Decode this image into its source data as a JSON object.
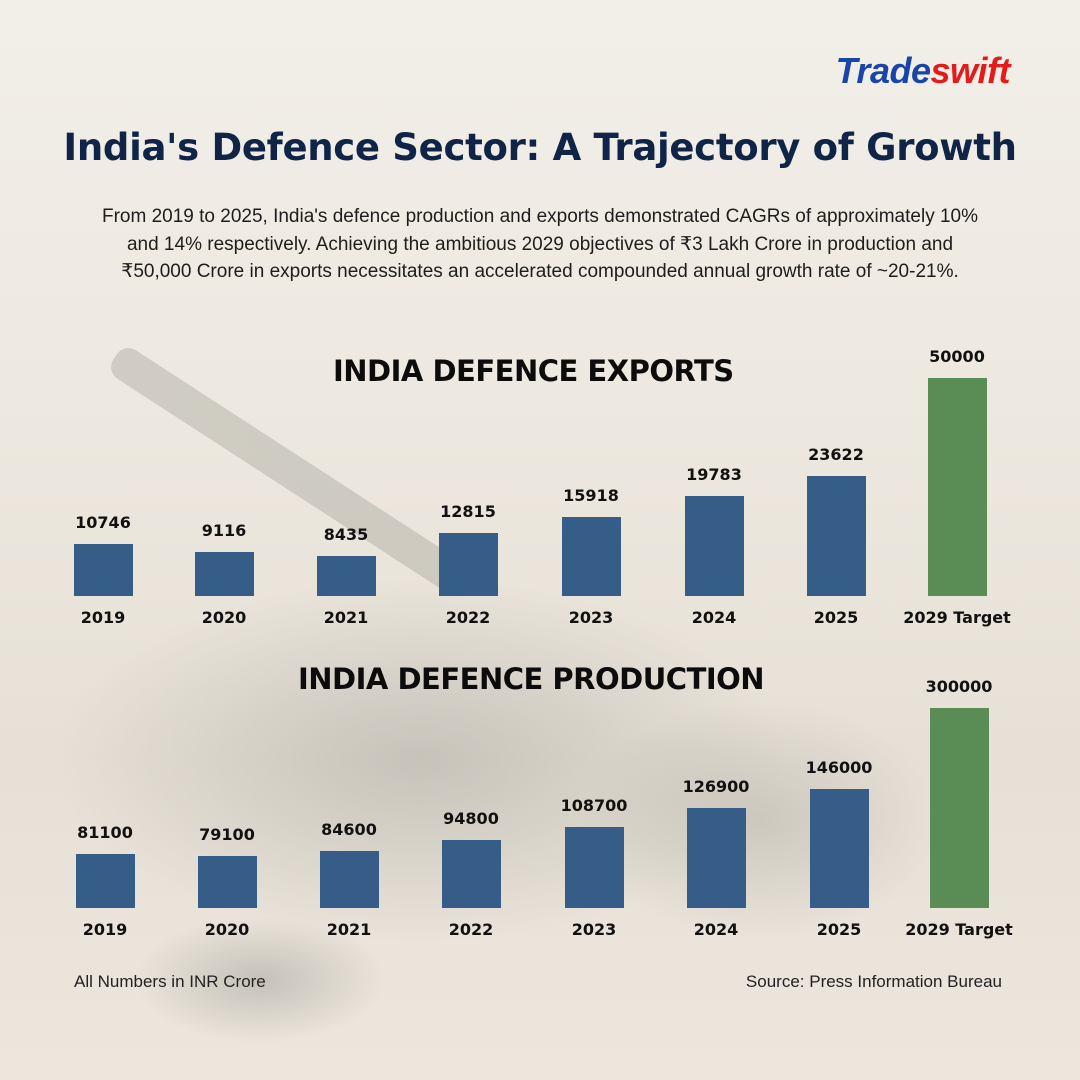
{
  "brand": {
    "part1": "Trade",
    "part2": "swift"
  },
  "header": {
    "title": "India's Defence Sector: A Trajectory of Growth",
    "subtitle": "From 2019 to 2025, India's defence production and exports demonstrated CAGRs of approximately 10% and 14% respectively. Achieving the ambitious 2029 objectives of ₹3 Lakh Crore in production and ₹50,000 Crore in exports necessitates an accelerated compounded annual growth rate of ~20-21%."
  },
  "colors": {
    "actual": "#355d87",
    "target": "#5a8c56",
    "title": "#0f2447",
    "brand_blue": "#1745a8",
    "brand_red": "#e21b1b"
  },
  "chart_data": [
    {
      "type": "bar",
      "title": "INDIA DEFENCE EXPORTS",
      "categories": [
        "2019",
        "2020",
        "2021",
        "2022",
        "2023",
        "2024",
        "2025",
        "2029 Target"
      ],
      "values": [
        10746,
        9116,
        8435,
        12815,
        15918,
        19783,
        23622,
        50000
      ],
      "highlight": "2029 Target",
      "xlabel": "",
      "ylabel": "",
      "grid": false,
      "legend": "none"
    },
    {
      "type": "bar",
      "title": "INDIA DEFENCE PRODUCTION",
      "categories": [
        "2019",
        "2020",
        "2021",
        "2022",
        "2023",
        "2024",
        "2025",
        "2029 Target"
      ],
      "values": [
        81100,
        79100,
        84600,
        94800,
        108700,
        126900,
        146000,
        300000
      ],
      "highlight": "2029 Target",
      "xlabel": "",
      "ylabel": "",
      "grid": false,
      "legend": "none"
    }
  ],
  "footer": {
    "note": "All Numbers in INR Crore",
    "source": "Source: Press Information Bureau"
  }
}
